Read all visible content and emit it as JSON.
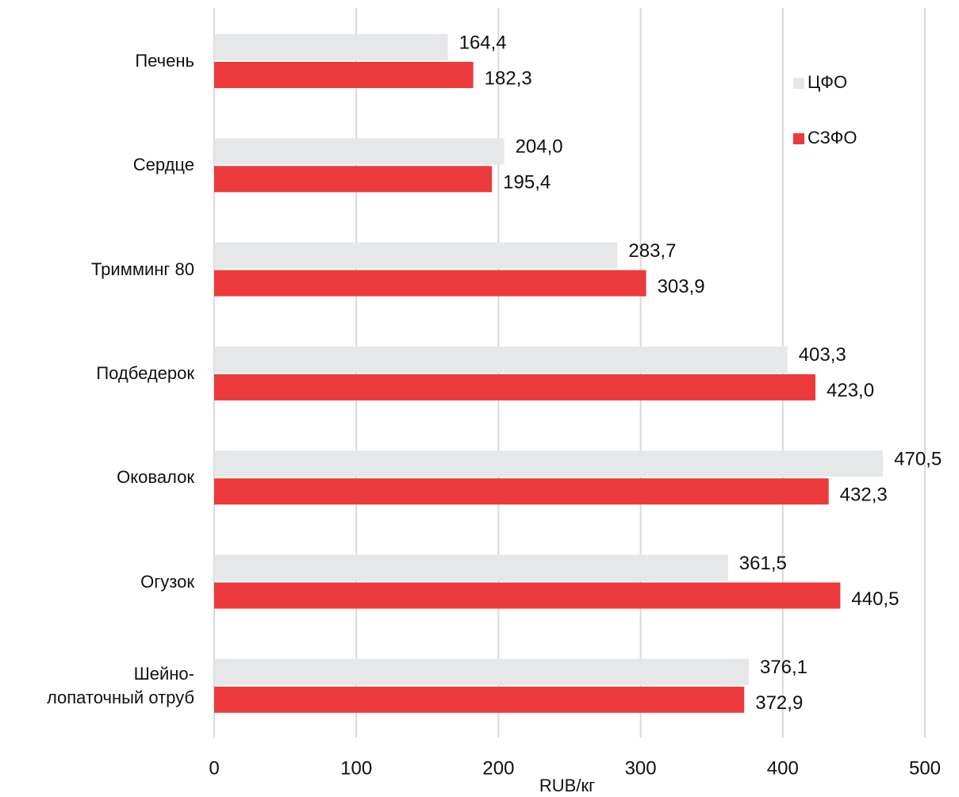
{
  "chart_data": {
    "type": "bar",
    "orientation": "horizontal",
    "x_label": "RUB/кг",
    "categories": [
      "Печень",
      "Сердце",
      "Тримминг 80",
      "Подбедерок",
      "Оковалок",
      "Огузок",
      "Шейно-\nлопаточный отруб"
    ],
    "series": [
      {
        "name": "ЦФО",
        "color": "#e6e7e8",
        "values": [
          164.4,
          204.0,
          283.7,
          403.3,
          470.5,
          361.5,
          376.1
        ],
        "value_labels": [
          "164,4",
          "204,0",
          "283,7",
          "403,3",
          "470,5",
          "361,5",
          "376,1"
        ]
      },
      {
        "name": "СЗФО",
        "color": "#ec393b",
        "values": [
          182.3,
          195.4,
          303.9,
          423.0,
          432.3,
          440.5,
          372.9
        ],
        "value_labels": [
          "182,3",
          "195,4",
          "303,9",
          "423,0",
          "432,3",
          "440,5",
          "372,9"
        ]
      }
    ],
    "xlim": [
      0,
      500
    ],
    "xticks": [
      0,
      100,
      200,
      300,
      400,
      500
    ],
    "grid": true,
    "legend": "upper right"
  }
}
